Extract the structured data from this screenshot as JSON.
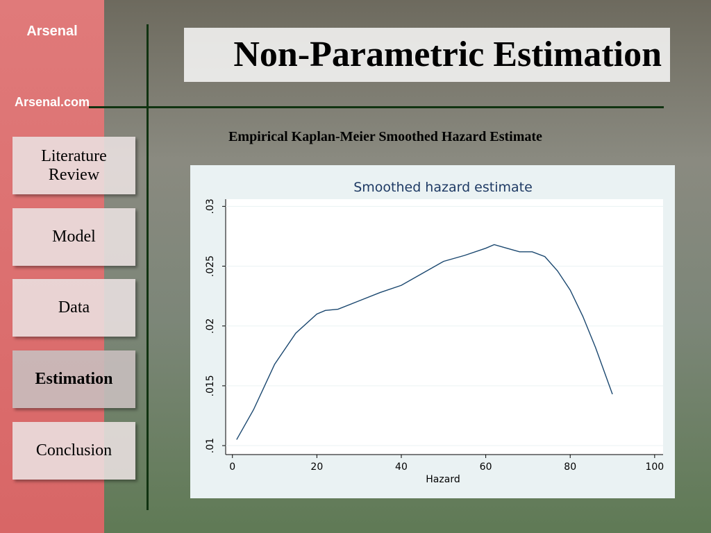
{
  "logo": {
    "name": "Arsenal",
    "site": "Arsenal.com"
  },
  "slide": {
    "title": "Non-Parametric Estimation",
    "subtitle": "Empirical Kaplan-Meier Smoothed Hazard Estimate"
  },
  "nav": [
    "Literature Review",
    "Model",
    "Data",
    "Estimation",
    "Conclusion"
  ],
  "chart_data": {
    "type": "line",
    "title": "Smoothed hazard estimate",
    "x_label": "Hazard",
    "x": [
      1,
      5,
      10,
      15,
      20,
      22,
      25,
      30,
      35,
      40,
      45,
      50,
      55,
      60,
      62,
      65,
      68,
      71,
      74,
      77,
      80,
      83,
      86,
      90
    ],
    "series": [
      {
        "color": "#1a476f",
        "values": [
          0.0105,
          0.013,
          0.0168,
          0.0194,
          0.021,
          0.0213,
          0.0214,
          0.0221,
          0.0228,
          0.0234,
          0.0244,
          0.0254,
          0.0259,
          0.0265,
          0.0268,
          0.0265,
          0.0262,
          0.0262,
          0.0258,
          0.0246,
          0.023,
          0.0208,
          0.0182,
          0.0143
        ]
      }
    ],
    "xlim": [
      -1.6,
      102
    ],
    "ylim": [
      0.00925,
      0.0306
    ],
    "xticks": [
      0,
      20,
      40,
      60,
      80,
      100
    ],
    "yticks": [
      {
        "value": 0.01,
        "label": ".01"
      },
      {
        "value": 0.015,
        "label": ".015"
      },
      {
        "value": 0.02,
        "label": ".02"
      },
      {
        "value": 0.025,
        "label": ".025"
      },
      {
        "value": 0.03,
        "label": ".03"
      }
    ],
    "grid": true
  }
}
